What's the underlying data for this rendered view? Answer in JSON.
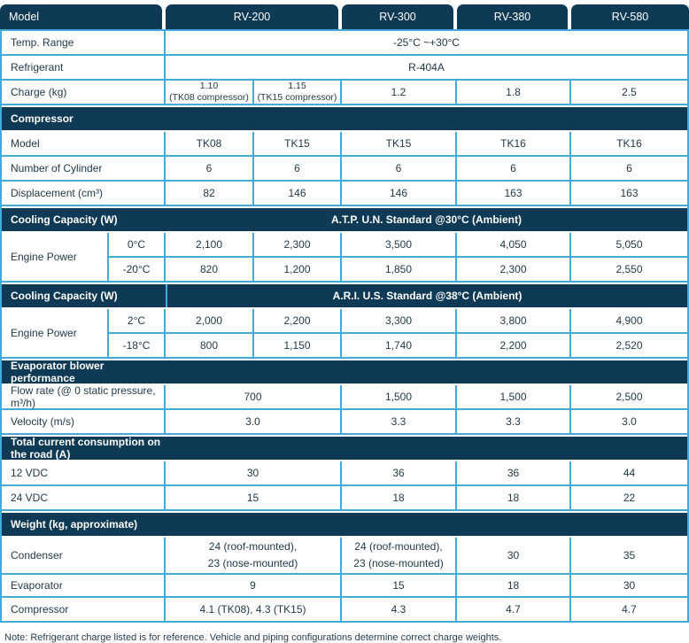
{
  "colors": {
    "header_navy": "#0f3a55",
    "border_blue": "#45a9d9"
  },
  "note": "Note: Refrigerant charge listed is for reference. Vehicle and piping configurations determine correct charge weights.",
  "table": {
    "header": {
      "tabs": [
        {
          "label": "Model"
        },
        {
          "label": "RV-200"
        },
        {
          "label": "RV-300"
        },
        {
          "label": "RV-380"
        },
        {
          "label": "RV-580"
        }
      ]
    },
    "rows": [
      {
        "type": "data",
        "cells": [
          {
            "text": "Temp. Range",
            "cols": 2,
            "kind": "label"
          },
          {
            "text": "-25°C ~+30°C",
            "cols": 5,
            "kind": "value"
          }
        ]
      },
      {
        "type": "data",
        "cells": [
          {
            "text": "Refrigerant",
            "cols": 2,
            "kind": "label"
          },
          {
            "text": "R-404A",
            "cols": 5,
            "kind": "value"
          }
        ]
      },
      {
        "type": "data",
        "cells": [
          {
            "text": "Charge (kg)",
            "cols": 2,
            "kind": "label"
          },
          {
            "text": "1.10\n(TK08 compressor)",
            "cols": 1,
            "kind": "value",
            "small": true
          },
          {
            "text": "1.15\n(TK15 compressor)",
            "cols": 1,
            "kind": "value",
            "small": true
          },
          {
            "text": "1.2",
            "cols": 1,
            "kind": "value"
          },
          {
            "text": "1.8",
            "cols": 1,
            "kind": "value"
          },
          {
            "text": "2.5",
            "cols": 1,
            "kind": "value"
          }
        ]
      },
      {
        "type": "section",
        "left": "Compressor"
      },
      {
        "type": "data",
        "cells": [
          {
            "text": "Model",
            "cols": 2,
            "kind": "label"
          },
          {
            "text": "TK08",
            "cols": 1,
            "kind": "value"
          },
          {
            "text": "TK15",
            "cols": 1,
            "kind": "value"
          },
          {
            "text": "TK15",
            "cols": 1,
            "kind": "value"
          },
          {
            "text": "TK16",
            "cols": 1,
            "kind": "value"
          },
          {
            "text": "TK16",
            "cols": 1,
            "kind": "value"
          }
        ]
      },
      {
        "type": "data",
        "cells": [
          {
            "text": "Number of Cylinder",
            "cols": 2,
            "kind": "label"
          },
          {
            "text": "6",
            "cols": 1,
            "kind": "value"
          },
          {
            "text": "6",
            "cols": 1,
            "kind": "value"
          },
          {
            "text": "6",
            "cols": 1,
            "kind": "value"
          },
          {
            "text": "6",
            "cols": 1,
            "kind": "value"
          },
          {
            "text": "6",
            "cols": 1,
            "kind": "value"
          }
        ]
      },
      {
        "type": "data",
        "cells": [
          {
            "text": "Displacement (cm³)",
            "cols": 2,
            "kind": "label"
          },
          {
            "text": "82",
            "cols": 1,
            "kind": "value"
          },
          {
            "text": "146",
            "cols": 1,
            "kind": "value"
          },
          {
            "text": "146",
            "cols": 1,
            "kind": "value"
          },
          {
            "text": "163",
            "cols": 1,
            "kind": "value"
          },
          {
            "text": "163",
            "cols": 1,
            "kind": "value"
          }
        ]
      },
      {
        "type": "section",
        "left": "Cooling Capacity (W)",
        "right": "A.T.P.  U.N. Standard @30°C (Ambient)"
      },
      {
        "type": "double",
        "label": "Engine Power",
        "sub": [
          {
            "temp": "0°C",
            "values": [
              "2,100",
              "2,300",
              "3,500",
              "4,050",
              "5,050"
            ]
          },
          {
            "temp": "-20°C",
            "values": [
              "820",
              "1,200",
              "1,850",
              "2,300",
              "2,550"
            ]
          }
        ]
      },
      {
        "type": "section",
        "left": "Cooling Capacity (W)",
        "right": "A.R.I.  U.S. Standard @38°C (Ambient)",
        "divider": true
      },
      {
        "type": "double",
        "label": "Engine Power",
        "sub": [
          {
            "temp": "2°C",
            "values": [
              "2,000",
              "2,200",
              "3,300",
              "3,800",
              "4,900"
            ]
          },
          {
            "temp": "-18°C",
            "values": [
              "800",
              "1,150",
              "1,740",
              "2,200",
              "2,520"
            ]
          }
        ]
      },
      {
        "type": "section",
        "left": "Evaporator blower performance"
      },
      {
        "type": "data",
        "cells": [
          {
            "text": "Flow rate (@ 0 static pressure, m³/h)",
            "cols": 2,
            "kind": "label"
          },
          {
            "text": "700",
            "cols": 2,
            "kind": "value"
          },
          {
            "text": "1,500",
            "cols": 1,
            "kind": "value"
          },
          {
            "text": "1,500",
            "cols": 1,
            "kind": "value"
          },
          {
            "text": "2,500",
            "cols": 1,
            "kind": "value"
          }
        ]
      },
      {
        "type": "data",
        "cells": [
          {
            "text": "Velocity (m/s)",
            "cols": 2,
            "kind": "label"
          },
          {
            "text": "3.0",
            "cols": 2,
            "kind": "value"
          },
          {
            "text": "3.3",
            "cols": 1,
            "kind": "value"
          },
          {
            "text": "3.3",
            "cols": 1,
            "kind": "value"
          },
          {
            "text": "3.0",
            "cols": 1,
            "kind": "value"
          }
        ]
      },
      {
        "type": "section",
        "left": "Total current consumption on the road (A)"
      },
      {
        "type": "data",
        "cells": [
          {
            "text": "12 VDC",
            "cols": 2,
            "kind": "label"
          },
          {
            "text": "30",
            "cols": 2,
            "kind": "value"
          },
          {
            "text": "36",
            "cols": 1,
            "kind": "value"
          },
          {
            "text": "36",
            "cols": 1,
            "kind": "value"
          },
          {
            "text": "44",
            "cols": 1,
            "kind": "value"
          }
        ]
      },
      {
        "type": "data",
        "cells": [
          {
            "text": "24 VDC",
            "cols": 2,
            "kind": "label"
          },
          {
            "text": "15",
            "cols": 2,
            "kind": "value"
          },
          {
            "text": "18",
            "cols": 1,
            "kind": "value"
          },
          {
            "text": "18",
            "cols": 1,
            "kind": "value"
          },
          {
            "text": "22",
            "cols": 1,
            "kind": "value"
          }
        ]
      },
      {
        "type": "section",
        "left": "Weight (kg, approximate)"
      },
      {
        "type": "data",
        "h": 42,
        "cells": [
          {
            "text": "Condenser",
            "cols": 2,
            "kind": "label"
          },
          {
            "text": "24 (roof-mounted),\n23 (nose-mounted)",
            "cols": 2,
            "kind": "value",
            "multi": true
          },
          {
            "text": "24 (roof-mounted),\n23 (nose-mounted)",
            "cols": 1,
            "kind": "value",
            "multi": true
          },
          {
            "text": "30",
            "cols": 1,
            "kind": "value"
          },
          {
            "text": "35",
            "cols": 1,
            "kind": "value"
          }
        ]
      },
      {
        "type": "data",
        "h": 26,
        "cells": [
          {
            "text": "Evaporator",
            "cols": 2,
            "kind": "label"
          },
          {
            "text": "9",
            "cols": 2,
            "kind": "value"
          },
          {
            "text": "15",
            "cols": 1,
            "kind": "value"
          },
          {
            "text": "18",
            "cols": 1,
            "kind": "value"
          },
          {
            "text": "30",
            "cols": 1,
            "kind": "value"
          }
        ]
      },
      {
        "type": "data",
        "cells": [
          {
            "text": "Compressor",
            "cols": 2,
            "kind": "label"
          },
          {
            "text": "4.1 (TK08), 4.3  (TK15)",
            "cols": 2,
            "kind": "value"
          },
          {
            "text": "4.3",
            "cols": 1,
            "kind": "value"
          },
          {
            "text": "4.7",
            "cols": 1,
            "kind": "value"
          },
          {
            "text": "4.7",
            "cols": 1,
            "kind": "value"
          }
        ]
      }
    ]
  }
}
